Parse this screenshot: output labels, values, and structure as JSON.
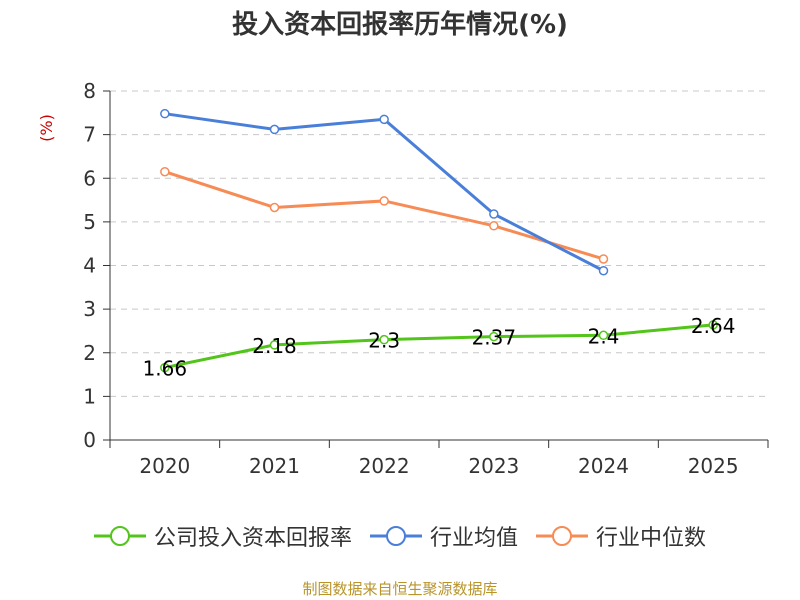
{
  "chart_data": {
    "type": "line",
    "title": "投入资本回报率历年情况(%)",
    "ylabel": "(%)",
    "xlabel": "",
    "ylim": [
      0,
      8
    ],
    "yticks": [
      0,
      1,
      2,
      3,
      4,
      5,
      6,
      7,
      8
    ],
    "categories": [
      "2020",
      "2021",
      "2022",
      "2023",
      "2024",
      "2025"
    ],
    "grid": true,
    "legend_position": "bottom",
    "series": [
      {
        "name": "公司投入资本回报率",
        "color": "#52c41a",
        "values": [
          1.66,
          2.18,
          2.3,
          2.37,
          2.4,
          2.64
        ],
        "data_labels": [
          "1.66",
          "2.18",
          "2.3",
          "2.37",
          "2.4",
          "2.64"
        ]
      },
      {
        "name": "行业均值",
        "color": "#4a7fd9",
        "values": [
          7.48,
          7.12,
          7.35,
          5.18,
          3.88,
          null
        ]
      },
      {
        "name": "行业中位数",
        "color": "#f78b55",
        "values": [
          6.15,
          5.33,
          5.48,
          4.91,
          4.15,
          null
        ]
      }
    ]
  },
  "footer": {
    "source": "制图数据来自恒生聚源数据库"
  }
}
